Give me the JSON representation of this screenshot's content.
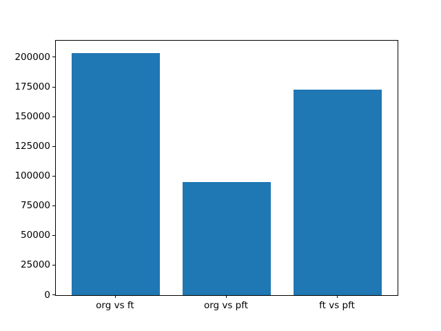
{
  "chart_data": {
    "type": "bar",
    "categories": [
      "org vs ft",
      "org vs pft",
      "ft vs pft"
    ],
    "values": [
      204000,
      95000,
      173000
    ],
    "title": "",
    "xlabel": "",
    "ylabel": "",
    "ylim": [
      0,
      214200
    ],
    "yticks": [
      0,
      25000,
      50000,
      75000,
      100000,
      125000,
      150000,
      175000,
      200000
    ],
    "bar_color": "#1f77b4",
    "grid": false,
    "legend": null
  }
}
